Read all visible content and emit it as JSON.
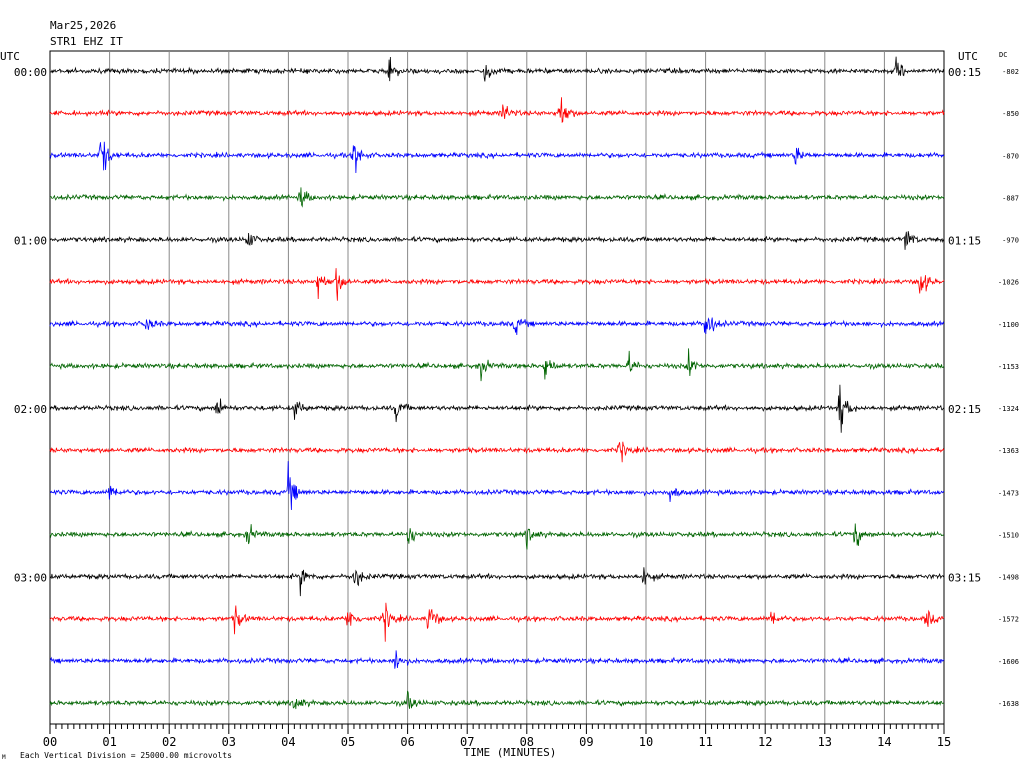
{
  "header": {
    "date": "Mar25,2026",
    "station": "STR1 EHZ IT",
    "utc_left": "UTC",
    "utc_right": "UTC",
    "dc_label": "DC"
  },
  "footer": {
    "note": "Each Vertical Division = 25000.00 microvolts",
    "mark": "M"
  },
  "colors": {
    "cycle": [
      "#000000",
      "#ff0000",
      "#0000ff",
      "#006400"
    ],
    "grid": "#000000"
  },
  "chart_data": {
    "type": "line",
    "title": "",
    "xlabel": "TIME (MINUTES)",
    "ylabel": "",
    "xlim": [
      0,
      15
    ],
    "x_ticks": [
      "00",
      "01",
      "02",
      "03",
      "04",
      "05",
      "06",
      "07",
      "08",
      "09",
      "10",
      "11",
      "12",
      "13",
      "14",
      "15"
    ],
    "grid": true,
    "traces": [
      {
        "left_label": "00:00",
        "right_label": "00:15",
        "dc": "-802",
        "events": [
          [
            5.7,
            10
          ],
          [
            7.3,
            9
          ],
          [
            14.2,
            11
          ]
        ]
      },
      {
        "left_label": "",
        "right_label": "",
        "dc": "-850",
        "events": [
          [
            7.6,
            9
          ],
          [
            8.55,
            20
          ]
        ]
      },
      {
        "left_label": "",
        "right_label": "",
        "dc": "-870",
        "events": [
          [
            0.85,
            22
          ],
          [
            5.1,
            15
          ],
          [
            12.5,
            8
          ]
        ]
      },
      {
        "left_label": "",
        "right_label": "",
        "dc": "-887",
        "events": [
          [
            4.2,
            9
          ]
        ]
      },
      {
        "left_label": "01:00",
        "right_label": "01:15",
        "dc": "-970",
        "events": [
          [
            3.3,
            9
          ],
          [
            14.35,
            10
          ]
        ]
      },
      {
        "left_label": "",
        "right_label": "",
        "dc": "-1026",
        "events": [
          [
            4.5,
            12
          ],
          [
            4.8,
            14
          ],
          [
            14.6,
            14
          ]
        ]
      },
      {
        "left_label": "",
        "right_label": "",
        "dc": "-1100",
        "events": [
          [
            1.6,
            8
          ],
          [
            7.8,
            8
          ],
          [
            11.0,
            18
          ]
        ]
      },
      {
        "left_label": "",
        "right_label": "",
        "dc": "-1153",
        "events": [
          [
            7.2,
            11
          ],
          [
            8.3,
            12
          ],
          [
            9.7,
            9
          ],
          [
            10.7,
            11
          ]
        ]
      },
      {
        "left_label": "02:00",
        "right_label": "02:15",
        "dc": "-1324",
        "events": [
          [
            2.8,
            10
          ],
          [
            4.1,
            9
          ],
          [
            5.8,
            9
          ],
          [
            13.25,
            24
          ]
        ]
      },
      {
        "left_label": "",
        "right_label": "",
        "dc": "-1363",
        "events": [
          [
            9.55,
            10
          ]
        ]
      },
      {
        "left_label": "",
        "right_label": "",
        "dc": "-1473",
        "events": [
          [
            1.0,
            8
          ],
          [
            4.0,
            18
          ],
          [
            10.4,
            7
          ]
        ]
      },
      {
        "left_label": "",
        "right_label": "",
        "dc": "-1510",
        "events": [
          [
            3.3,
            10
          ],
          [
            6.0,
            10
          ],
          [
            8.0,
            9
          ],
          [
            13.5,
            11
          ]
        ]
      },
      {
        "left_label": "03:00",
        "right_label": "03:15",
        "dc": "-1498",
        "events": [
          [
            4.2,
            10
          ],
          [
            5.1,
            12
          ],
          [
            9.95,
            9
          ]
        ]
      },
      {
        "left_label": "",
        "right_label": "",
        "dc": "-1572",
        "events": [
          [
            3.1,
            11
          ],
          [
            5.0,
            12
          ],
          [
            5.6,
            16
          ],
          [
            6.35,
            16
          ],
          [
            12.1,
            8
          ],
          [
            14.7,
            8
          ]
        ]
      },
      {
        "left_label": "",
        "right_label": "",
        "dc": "-1606",
        "events": [
          [
            5.8,
            11
          ]
        ]
      },
      {
        "left_label": "",
        "right_label": "",
        "dc": "-1638",
        "events": [
          [
            4.1,
            8
          ],
          [
            6.0,
            8
          ]
        ]
      }
    ]
  }
}
